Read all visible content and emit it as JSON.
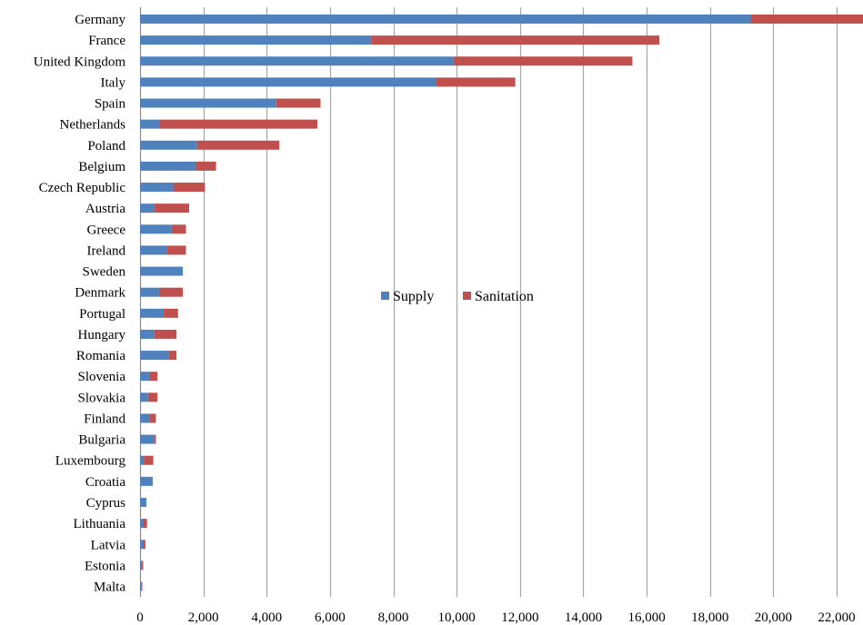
{
  "chart_data": {
    "type": "bar",
    "orientation": "horizontal",
    "stacked": true,
    "categories": [
      "Germany",
      "France",
      "United Kingdom",
      "Italy",
      "Spain",
      "Netherlands",
      "Poland",
      "Belgium",
      "Czech Republic",
      "Austria",
      "Greece",
      "Ireland",
      "Sweden",
      "Denmark",
      "Portugal",
      "Hungary",
      "Romania",
      "Slovenia",
      "Slovakia",
      "Finland",
      "Bulgaria",
      "Luxembourg",
      "Croatia",
      "Cyprus",
      "Lithuania",
      "Latvia",
      "Estonia",
      "Malta"
    ],
    "series": [
      {
        "name": "Supply",
        "color": "#4F81BD",
        "values": [
          19300,
          7300,
          9900,
          9350,
          4300,
          600,
          1800,
          1750,
          1050,
          450,
          1000,
          850,
          1350,
          600,
          750,
          450,
          900,
          300,
          250,
          300,
          450,
          120,
          400,
          200,
          100,
          100,
          60,
          40
        ]
      },
      {
        "name": "Sanitation",
        "color": "#C0504D",
        "values": [
          3800,
          9100,
          5650,
          2500,
          1400,
          5000,
          2600,
          650,
          1000,
          1100,
          450,
          600,
          0,
          750,
          450,
          700,
          250,
          250,
          300,
          200,
          50,
          300,
          0,
          0,
          120,
          70,
          40,
          30
        ]
      }
    ],
    "xlim": [
      0,
      22000
    ],
    "xticks": [
      "0",
      "2,000",
      "4,000",
      "6,000",
      "8,000",
      "10,000",
      "12,000",
      "14,000",
      "16,000",
      "18,000",
      "20,000",
      "22,000"
    ],
    "xtick_values": [
      0,
      2000,
      4000,
      6000,
      8000,
      10000,
      12000,
      14000,
      16000,
      18000,
      20000,
      22000
    ],
    "grid": "vertical",
    "legend": "center",
    "title": "",
    "xlabel": "",
    "ylabel": ""
  }
}
